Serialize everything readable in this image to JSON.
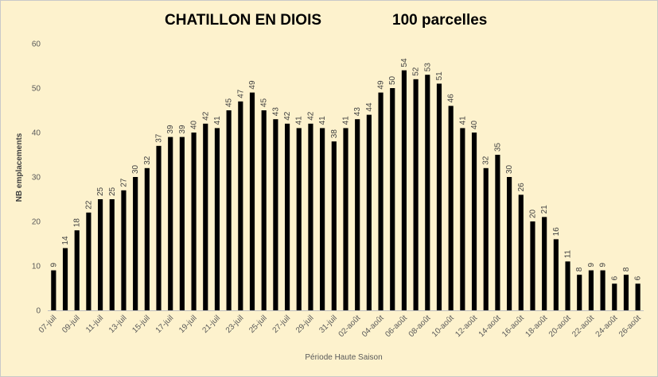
{
  "chart_data": {
    "type": "bar",
    "title": "CHATILLON EN DIOIS",
    "subtitle": "100 parcelles",
    "xlabel": "Période Haute Saison",
    "ylabel": "NB emplacements",
    "ylim": [
      0,
      60
    ],
    "yticks": [
      0,
      10,
      20,
      30,
      40,
      50,
      60
    ],
    "grid": false,
    "data_labels": true,
    "series_color": "#000000",
    "categories": [
      "07-juil",
      "08-juil",
      "09-juil",
      "10-juil",
      "11-juil",
      "12-juil",
      "13-juil",
      "14-juil",
      "15-juil",
      "16-juil",
      "17-juil",
      "18-juil",
      "19-juil",
      "20-juil",
      "21-juil",
      "22-juil",
      "23-juil",
      "24-juil",
      "25-juil",
      "26-juil",
      "27-juil",
      "28-juil",
      "29-juil",
      "30-juil",
      "31-juil",
      "01-août",
      "02-août",
      "03-août",
      "04-août",
      "05-août",
      "06-août",
      "07-août",
      "08-août",
      "09-août",
      "10-août",
      "11-août",
      "12-août",
      "13-août",
      "14-août",
      "15-août",
      "16-août",
      "17-août",
      "18-août",
      "19-août",
      "20-août",
      "21-août",
      "22-août",
      "23-août",
      "24-août",
      "25-août",
      "26-août"
    ],
    "tick_labels": [
      "07-juil",
      "09-juil",
      "11-juil",
      "13-juil",
      "15-juil",
      "17-juil",
      "19-juil",
      "21-juil",
      "23-juil",
      "25-juil",
      "27-juil",
      "29-juil",
      "31-juil",
      "02-août",
      "04-août",
      "06-août",
      "08-août",
      "10-août",
      "12-août",
      "14-août",
      "16-août",
      "18-août",
      "20-août",
      "22-août",
      "24-août",
      "26-août"
    ],
    "values": [
      9,
      14,
      18,
      22,
      25,
      25,
      27,
      30,
      32,
      37,
      39,
      39,
      40,
      42,
      41,
      45,
      47,
      49,
      45,
      43,
      42,
      41,
      42,
      41,
      38,
      41,
      43,
      44,
      49,
      50,
      54,
      52,
      53,
      51,
      46,
      41,
      40,
      32,
      35,
      30,
      26,
      20,
      21,
      16,
      11,
      8,
      9,
      9,
      6,
      8,
      6
    ]
  }
}
